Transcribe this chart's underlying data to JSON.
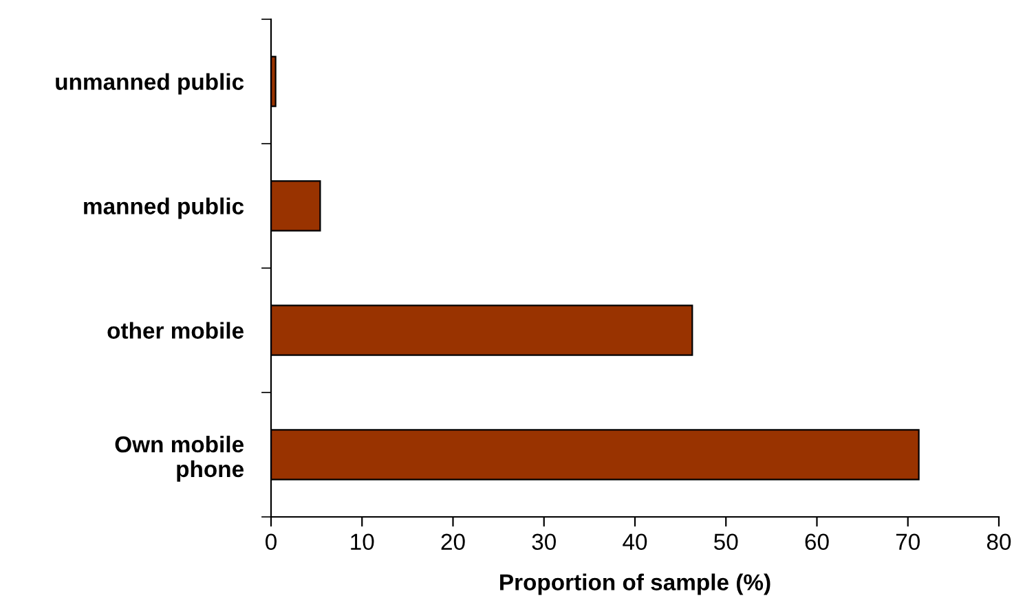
{
  "chart_data": {
    "type": "bar",
    "orientation": "horizontal",
    "xlabel": "Proportion of sample (%)",
    "categories": [
      "unmanned public",
      "manned public",
      "other mobile",
      "Own mobile\nphone"
    ],
    "values": [
      0.5,
      5.4,
      46.3,
      71.2
    ],
    "color": "#993300",
    "xlim": [
      0,
      80
    ],
    "xticks": [
      0,
      10,
      20,
      30,
      40,
      50,
      60,
      70,
      80
    ],
    "grid": false
  }
}
